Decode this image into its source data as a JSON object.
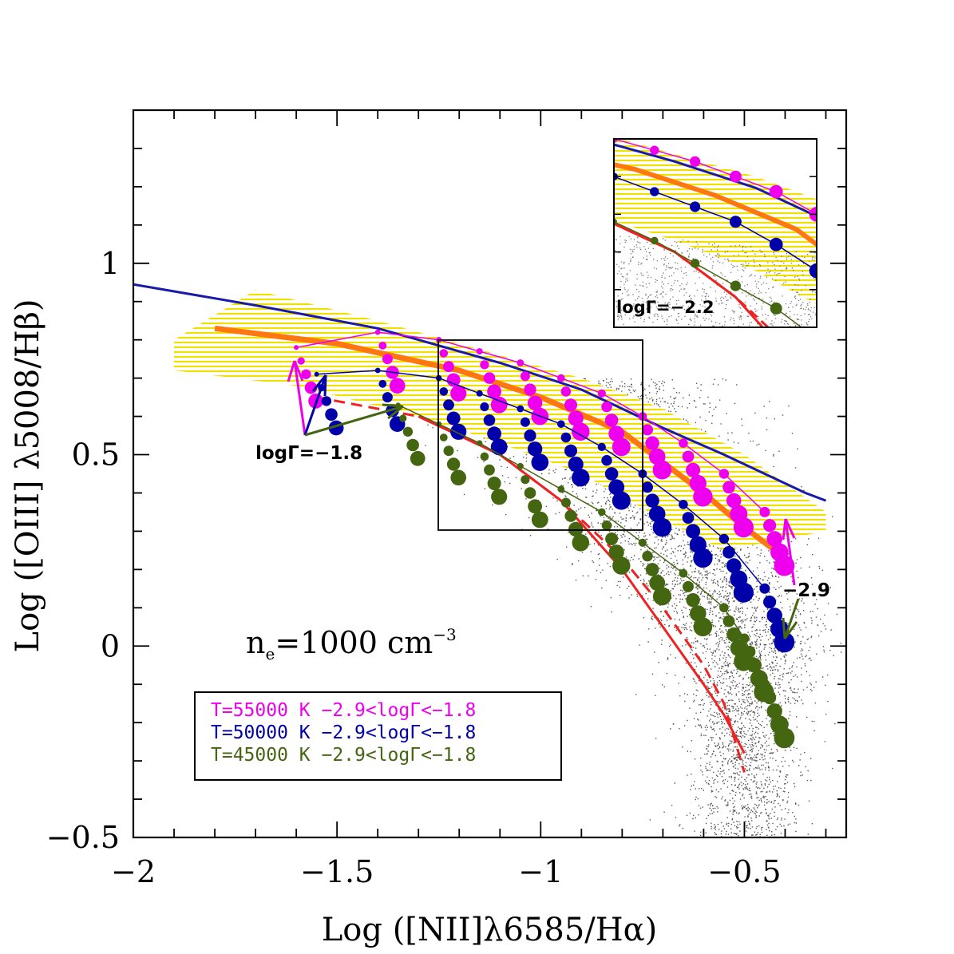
{
  "chart_data": {
    "type": "scatter",
    "xlabel": "Log ([NII]λ6585/Hα)",
    "ylabel": "Log ([OIII] λ5008/Hβ)",
    "xlim": [
      -2.0,
      -0.25
    ],
    "ylim": [
      -0.5,
      1.4
    ],
    "x_ticks": [
      {
        "v": -2.0,
        "label": "−2"
      },
      {
        "v": -1.5,
        "label": "−1.5"
      },
      {
        "v": -1.0,
        "label": "−1"
      },
      {
        "v": -0.5,
        "label": "−0.5"
      }
    ],
    "y_ticks": [
      {
        "v": -0.5,
        "label": "−0.5"
      },
      {
        "v": 0.0,
        "label": "0"
      },
      {
        "v": 0.5,
        "label": "0.5"
      },
      {
        "v": 1.0,
        "label": "1"
      }
    ],
    "density_annotation": {
      "prefix": "n",
      "sub": "e",
      "mid": "=1000 cm",
      "sup": "−3"
    },
    "logGamma_label_left": "logΓ=−1.8",
    "logGamma_label_right": "−2.9",
    "inset": {
      "label": "logΓ=−2.2",
      "xlim": [
        -1.25,
        -0.75
      ],
      "ylim": [
        0.3,
        0.8
      ],
      "note": "zoom of the rectangular region"
    },
    "legend": [
      {
        "text": "T=55000 K  −2.9<logΓ<−1.8",
        "color": "#ee00ee"
      },
      {
        "text": "T=50000 K  −2.9<logΓ<−1.8",
        "color": "#0000aa"
      },
      {
        "text": "T=45000 K  −2.9<logΓ<−1.8",
        "color": "#446611"
      }
    ],
    "curves": [
      {
        "name": "maximum-starburst-line",
        "color": "#1a1aaa",
        "x": [
          -2.0,
          -1.7,
          -1.4,
          -1.1,
          -0.9,
          -0.7,
          -0.55,
          -0.45,
          -0.35,
          -0.3
        ],
        "y": [
          0.945,
          0.89,
          0.83,
          0.74,
          0.67,
          0.57,
          0.5,
          0.45,
          0.4,
          0.38
        ]
      },
      {
        "name": "orange-fit-line",
        "color": "#ff7711",
        "x": [
          -1.8,
          -1.5,
          -1.2,
          -1.0,
          -0.8,
          -0.6,
          -0.5,
          -0.4
        ],
        "y": [
          0.83,
          0.79,
          0.72,
          0.65,
          0.56,
          0.4,
          0.31,
          0.23
        ]
      },
      {
        "name": "red-solid-line",
        "color": "#ee2222",
        "x": [
          -1.3,
          -1.1,
          -0.95,
          -0.8,
          -0.7,
          -0.6,
          -0.55,
          -0.5
        ],
        "y": [
          0.6,
          0.5,
          0.38,
          0.2,
          0.05,
          -0.1,
          -0.18,
          -0.28
        ]
      },
      {
        "name": "red-dashed-line",
        "color": "#ee2222",
        "x": [
          -1.55,
          -1.3,
          -1.1,
          -0.95,
          -0.8,
          -0.7,
          -0.6,
          -0.55,
          -0.5
        ],
        "y": [
          0.65,
          0.6,
          0.5,
          0.38,
          0.23,
          0.1,
          -0.05,
          -0.15,
          -0.33
        ]
      }
    ],
    "series": [
      {
        "name": "T=55000 K",
        "color": "#ee00ee",
        "x": [
          -1.6,
          -1.4,
          -1.25,
          -1.15,
          -1.05,
          -0.95,
          -0.85,
          -0.75,
          -0.65,
          -0.55,
          -0.45
        ],
        "y": [
          0.78,
          0.82,
          0.8,
          0.77,
          0.74,
          0.7,
          0.66,
          0.6,
          0.53,
          0.45,
          0.35
        ]
      },
      {
        "name": "T=50000 K",
        "color": "#0000aa",
        "x": [
          -1.55,
          -1.4,
          -1.25,
          -1.15,
          -1.05,
          -0.95,
          -0.85,
          -0.75,
          -0.65,
          -0.55,
          -0.45
        ],
        "y": [
          0.71,
          0.72,
          0.7,
          0.66,
          0.62,
          0.58,
          0.52,
          0.45,
          0.37,
          0.28,
          0.15
        ]
      },
      {
        "name": "T=45000 K",
        "color": "#446611",
        "x": [
          -1.35,
          -1.25,
          -1.15,
          -1.05,
          -0.95,
          -0.85,
          -0.75,
          -0.65,
          -0.55,
          -0.5,
          -0.45
        ],
        "y": [
          0.63,
          0.58,
          0.53,
          0.47,
          0.41,
          0.35,
          0.27,
          0.19,
          0.1,
          0.02,
          -0.1
        ]
      }
    ]
  }
}
